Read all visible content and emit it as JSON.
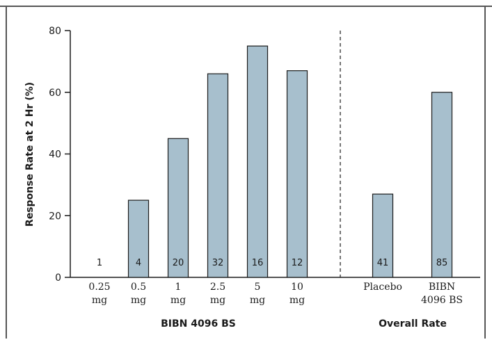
{
  "chart_data": {
    "type": "bar",
    "title": "",
    "ylabel": "Response Rate at 2 Hr (%)",
    "ylim": [
      0,
      80
    ],
    "yticks": [
      0,
      20,
      40,
      60,
      80
    ],
    "grid": false,
    "bar_color": "#a7bfcd",
    "groups": [
      {
        "name": "BIBN 4096 BS",
        "categories": [
          {
            "line1": "0.25",
            "line2": "mg",
            "value": 0,
            "n": "1"
          },
          {
            "line1": "0.5",
            "line2": "mg",
            "value": 25,
            "n": "4"
          },
          {
            "line1": "1",
            "line2": "mg",
            "value": 45,
            "n": "20"
          },
          {
            "line1": "2.5",
            "line2": "mg",
            "value": 66,
            "n": "32"
          },
          {
            "line1": "5",
            "line2": "mg",
            "value": 75,
            "n": "16"
          },
          {
            "line1": "10",
            "line2": "mg",
            "value": 67,
            "n": "12"
          }
        ]
      },
      {
        "name": "Overall Rate",
        "categories": [
          {
            "line1": "Placebo",
            "line2": "",
            "value": 27,
            "n": "41"
          },
          {
            "line1": "BIBN",
            "line2": "4096 BS",
            "value": 60,
            "n": "85"
          }
        ]
      }
    ]
  }
}
